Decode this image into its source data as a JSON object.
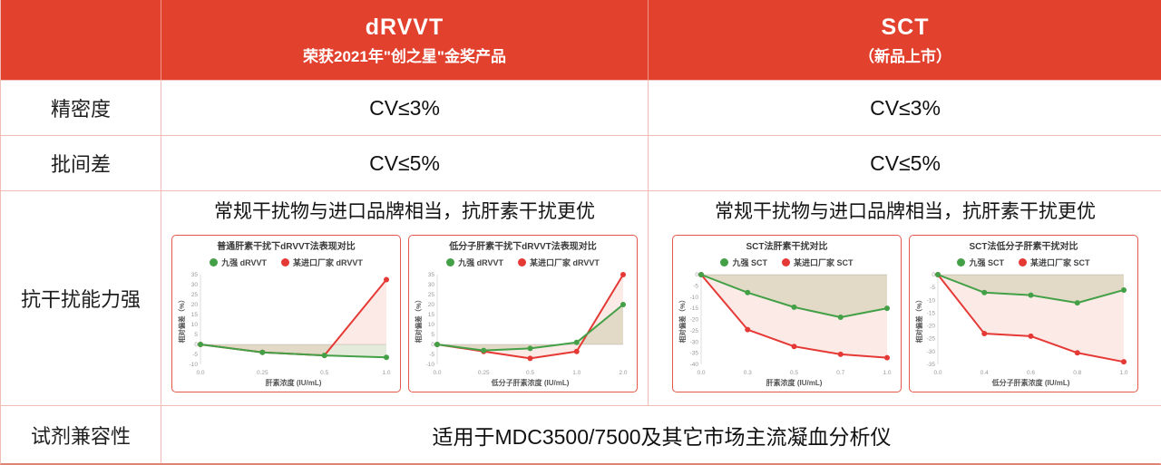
{
  "colors": {
    "brand_red": "#e2412e",
    "table_border": "#f0bdb6",
    "panel_border": "#e4574a",
    "series_green": "#43a047",
    "series_red": "#e53935"
  },
  "header": {
    "drvvt": {
      "title": "dRVVT",
      "subtitle": "荣获2021年\"创之星\"金奖产品"
    },
    "sct": {
      "title": "SCT",
      "subtitle": "（新品上市）"
    }
  },
  "rows": {
    "precision": {
      "label": "精密度",
      "drvvt": "CV≤3%",
      "sct": "CV≤3%"
    },
    "batch": {
      "label": "批间差",
      "drvvt": "CV≤5%",
      "sct": "CV≤5%"
    },
    "interference": {
      "label": "抗干扰能力强",
      "drvvt_note": "常规干扰物与进口品牌相当，抗肝素干扰更优",
      "sct_note": "常规干扰物与进口品牌相当，抗肝素干扰更优"
    },
    "compatibility": {
      "label": "试剂兼容性",
      "value": "适用于MDC3500/7500及其它市场主流凝血分析仪"
    }
  },
  "chart_data": [
    {
      "type": "line",
      "title": "普通肝素干扰下dRVVT法表现对比",
      "x_categories": [
        "0.0",
        "0.25",
        "0.5",
        "1.0"
      ],
      "xlabel": "肝素浓度 (IU/mL)",
      "ylabel": "相对偏差（%）",
      "ylim": [
        -10,
        35
      ],
      "yticks": [
        35,
        30,
        25,
        20,
        15,
        10,
        5,
        0,
        -5,
        -10
      ],
      "grid": "zero-line-only",
      "legend_position": "top",
      "series": [
        {
          "name": "九强 dRVVT",
          "color": "#43a047",
          "fill": "rgba(125,155,70,0.20)",
          "values": [
            0,
            -4,
            -5.5,
            -6.5
          ]
        },
        {
          "name": "某进口厂家 dRVVT",
          "color": "#e53935",
          "fill": "rgba(229,80,60,0.12)",
          "values": [
            0,
            -4,
            -5.5,
            32.5
          ]
        }
      ]
    },
    {
      "type": "line",
      "title": "低分子肝素干扰下dRVVT法表现对比",
      "x_categories": [
        "0.0",
        "0.25",
        "0.5",
        "1.0",
        "2.0"
      ],
      "xlabel": "低分子肝素浓度 (IU/mL)",
      "ylabel": "相对偏差（%）",
      "ylim": [
        -10,
        35
      ],
      "yticks": [
        35,
        30,
        25,
        20,
        15,
        10,
        5,
        0,
        -5,
        -10
      ],
      "grid": "zero-line-only",
      "legend_position": "top",
      "series": [
        {
          "name": "九强 dRVVT",
          "color": "#43a047",
          "fill": "rgba(125,155,70,0.20)",
          "values": [
            0,
            -3,
            -2,
            1,
            20
          ]
        },
        {
          "name": "某进口厂家 dRVVT",
          "color": "#e53935",
          "fill": "rgba(229,80,60,0.12)",
          "values": [
            0,
            -3.5,
            -7,
            -3.5,
            35
          ]
        }
      ]
    },
    {
      "type": "line",
      "title": "SCT法肝素干扰对比",
      "x_categories": [
        "0.0",
        "0.3",
        "0.5",
        "0.7",
        "1.0"
      ],
      "xlabel": "肝素浓度 (IU/mL)",
      "ylabel": "相对偏差（%）",
      "ylim": [
        -40,
        0
      ],
      "yticks": [
        0,
        -5,
        -10,
        -15,
        -20,
        -25,
        -30,
        -35,
        -40
      ],
      "grid": "zero-line-only",
      "legend_position": "top",
      "series": [
        {
          "name": "九强 SCT",
          "color": "#43a047",
          "fill": "rgba(125,155,70,0.20)",
          "values": [
            0,
            -8,
            -14.5,
            -19,
            -15
          ]
        },
        {
          "name": "某进口厂家 SCT",
          "color": "#e53935",
          "fill": "rgba(229,80,60,0.12)",
          "values": [
            0,
            -24.5,
            -32,
            -35.5,
            -37
          ]
        }
      ]
    },
    {
      "type": "line",
      "title": "SCT法低分子肝素干扰对比",
      "x_categories": [
        "0.0",
        "0.4",
        "0.6",
        "0.8",
        "1.0"
      ],
      "xlabel": "低分子肝素浓度 (IU/mL)",
      "ylabel": "相对偏差（%）",
      "ylim": [
        -35,
        0
      ],
      "yticks": [
        0,
        -5,
        -10,
        -15,
        -20,
        -25,
        -30,
        -35
      ],
      "grid": "zero-line-only",
      "legend_position": "top",
      "series": [
        {
          "name": "九强 SCT",
          "color": "#43a047",
          "fill": "rgba(125,155,70,0.20)",
          "values": [
            0,
            -7,
            -8,
            -11,
            -6
          ]
        },
        {
          "name": "某进口厂家 SCT",
          "color": "#e53935",
          "fill": "rgba(229,80,60,0.12)",
          "values": [
            0,
            -23,
            -24,
            -30.5,
            -34
          ]
        }
      ]
    }
  ]
}
